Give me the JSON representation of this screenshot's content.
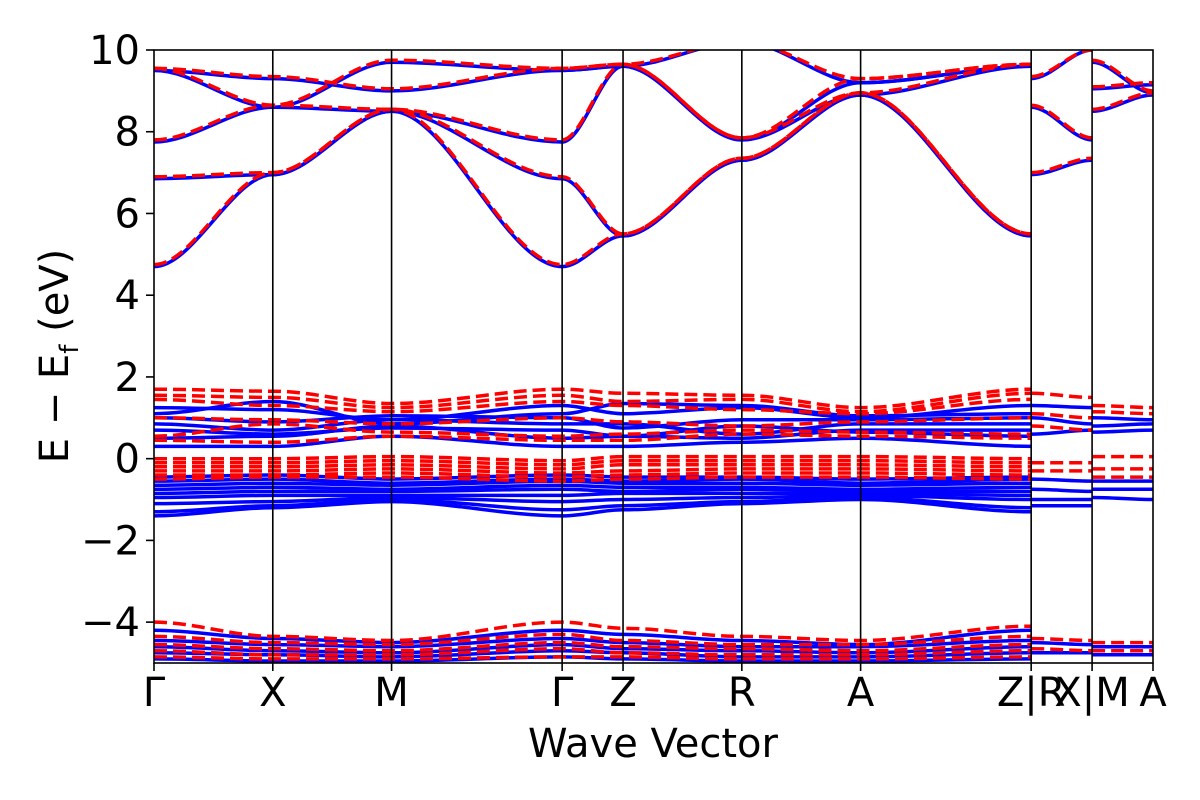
{
  "chart_data": {
    "type": "line",
    "xlabel": "Wave Vector",
    "ylabel_main": "E − E",
    "ylabel_sub": "f",
    "ylabel_unit": " (eV)",
    "ylim": [
      -5,
      10
    ],
    "yticks": [
      -4,
      -2,
      0,
      2,
      4,
      6,
      8,
      10
    ],
    "ytick_labels": [
      "−4",
      "−2",
      "0",
      "2",
      "4",
      "6",
      "8",
      "10"
    ],
    "xlim": [
      0,
      16.4
    ],
    "high_symmetry_points": [
      {
        "label": "Γ",
        "x": 0
      },
      {
        "label": "X",
        "x": 1.95
      },
      {
        "label": "M",
        "x": 3.9
      },
      {
        "label": "Γ",
        "x": 6.7
      },
      {
        "label": "Z",
        "x": 7.7
      },
      {
        "label": "R",
        "x": 9.65
      },
      {
        "label": "A",
        "x": 11.6
      },
      {
        "label": "Z|R",
        "x": 14.4
      },
      {
        "label": "X|M",
        "x": 15.4
      },
      {
        "label": "A",
        "x": 16.4
      }
    ],
    "colors": {
      "series_a": "#0000ff",
      "series_b": "#ff0000",
      "frame": "#000000"
    },
    "segments": [
      {
        "x0": 0,
        "x1": 14.4
      },
      {
        "x0": 14.4,
        "x1": 15.4
      },
      {
        "x0": 15.4,
        "x1": 16.4
      }
    ],
    "series": [
      {
        "style": "solid",
        "color": "#0000ff",
        "bands": [
          {
            "seg": 0,
            "y": [
              4.7,
              6.95,
              8.5,
              4.7,
              5.45,
              7.3,
              8.9,
              5.45
            ]
          },
          {
            "seg": 0,
            "y": [
              6.85,
              6.95,
              8.5,
              6.85,
              5.45,
              7.3,
              8.9,
              5.45
            ]
          },
          {
            "seg": 0,
            "y": [
              7.75,
              8.6,
              8.5,
              7.75,
              9.6,
              7.8,
              8.9,
              9.6
            ]
          },
          {
            "seg": 0,
            "y": [
              9.5,
              9.3,
              9.0,
              9.5,
              9.6,
              7.8,
              9.2,
              9.6
            ]
          },
          {
            "seg": 0,
            "y": [
              9.5,
              8.6,
              9.7,
              9.5,
              9.6,
              10.2,
              9.2,
              9.6
            ]
          },
          {
            "seg": 1,
            "y": [
              6.95,
              7.3
            ]
          },
          {
            "seg": 1,
            "y": [
              8.6,
              7.8
            ]
          },
          {
            "seg": 1,
            "y": [
              9.3,
              10.0
            ]
          },
          {
            "seg": 2,
            "y": [
              8.5,
              8.9
            ]
          },
          {
            "seg": 2,
            "y": [
              9.05,
              9.15
            ]
          },
          {
            "seg": 2,
            "y": [
              9.7,
              8.95
            ]
          },
          {
            "seg": 0,
            "y": [
              1.25,
              1.2,
              0.95,
              1.3,
              1.1,
              1.25,
              1.0,
              1.3
            ]
          },
          {
            "seg": 0,
            "y": [
              1.1,
              1.4,
              0.85,
              1.1,
              1.35,
              1.3,
              1.05,
              1.1
            ]
          },
          {
            "seg": 0,
            "y": [
              1.0,
              0.9,
              1.05,
              1.0,
              0.75,
              0.95,
              0.95,
              1.0
            ]
          },
          {
            "seg": 0,
            "y": [
              0.85,
              0.7,
              0.95,
              0.85,
              0.85,
              0.6,
              0.85,
              0.85
            ]
          },
          {
            "seg": 0,
            "y": [
              0.7,
              0.6,
              0.75,
              0.7,
              0.55,
              0.5,
              0.7,
              0.7
            ]
          },
          {
            "seg": 0,
            "y": [
              0.5,
              0.55,
              0.8,
              0.5,
              0.55,
              0.8,
              0.65,
              0.55
            ]
          },
          {
            "seg": 0,
            "y": [
              0.3,
              0.3,
              0.55,
              0.3,
              0.3,
              0.4,
              0.5,
              0.3
            ]
          },
          {
            "seg": 1,
            "y": [
              1.3,
              1.25
            ]
          },
          {
            "seg": 1,
            "y": [
              1.0,
              0.85
            ]
          },
          {
            "seg": 1,
            "y": [
              0.6,
              0.7
            ]
          },
          {
            "seg": 2,
            "y": [
              1.0,
              0.95
            ]
          },
          {
            "seg": 2,
            "y": [
              0.8,
              0.85
            ]
          },
          {
            "seg": 2,
            "y": [
              0.65,
              0.7
            ]
          },
          {
            "seg": 0,
            "y": [
              -0.45,
              -0.4,
              -0.5,
              -0.4,
              -0.45,
              -0.45,
              -0.5,
              -0.45
            ]
          },
          {
            "seg": 0,
            "y": [
              -0.55,
              -0.5,
              -0.6,
              -0.5,
              -0.55,
              -0.5,
              -0.6,
              -0.5
            ]
          },
          {
            "seg": 0,
            "y": [
              -0.65,
              -0.6,
              -0.65,
              -0.55,
              -0.6,
              -0.6,
              -0.65,
              -0.6
            ]
          },
          {
            "seg": 0,
            "y": [
              -0.75,
              -0.7,
              -0.75,
              -0.65,
              -0.7,
              -0.7,
              -0.75,
              -0.7
            ]
          },
          {
            "seg": 0,
            "y": [
              -0.85,
              -0.8,
              -0.8,
              -0.75,
              -0.8,
              -0.75,
              -0.8,
              -0.8
            ]
          },
          {
            "seg": 0,
            "y": [
              -0.95,
              -0.9,
              -0.9,
              -0.9,
              -0.85,
              -0.85,
              -0.85,
              -0.9
            ]
          },
          {
            "seg": 0,
            "y": [
              -1.1,
              -1.05,
              -0.95,
              -1.05,
              -1.0,
              -0.95,
              -0.9,
              -1.0
            ]
          },
          {
            "seg": 0,
            "y": [
              -1.3,
              -1.15,
              -1.0,
              -1.25,
              -1.15,
              -1.05,
              -0.95,
              -1.2
            ]
          },
          {
            "seg": 0,
            "y": [
              -1.4,
              -1.2,
              -1.05,
              -1.4,
              -1.25,
              -1.1,
              -1.0,
              -1.3
            ]
          },
          {
            "seg": 1,
            "y": [
              -0.5,
              -0.55
            ]
          },
          {
            "seg": 1,
            "y": [
              -0.75,
              -0.8
            ]
          },
          {
            "seg": 1,
            "y": [
              -1.0,
              -1.0
            ]
          },
          {
            "seg": 1,
            "y": [
              -1.15,
              -1.15
            ]
          },
          {
            "seg": 2,
            "y": [
              -0.55,
              -0.55
            ]
          },
          {
            "seg": 2,
            "y": [
              -0.75,
              -0.75
            ]
          },
          {
            "seg": 2,
            "y": [
              -0.95,
              -1.0
            ]
          },
          {
            "seg": 0,
            "y": [
              -4.2,
              -4.4,
              -4.5,
              -4.2,
              -4.3,
              -4.45,
              -4.55,
              -4.2
            ]
          },
          {
            "seg": 0,
            "y": [
              -4.45,
              -4.55,
              -4.6,
              -4.4,
              -4.5,
              -4.6,
              -4.6,
              -4.45
            ]
          },
          {
            "seg": 0,
            "y": [
              -4.6,
              -4.7,
              -4.75,
              -4.55,
              -4.65,
              -4.7,
              -4.75,
              -4.6
            ]
          },
          {
            "seg": 0,
            "y": [
              -4.75,
              -4.8,
              -4.85,
              -4.7,
              -4.75,
              -4.85,
              -4.85,
              -4.75
            ]
          },
          {
            "seg": 0,
            "y": [
              -4.9,
              -4.95,
              -4.95,
              -4.85,
              -4.9,
              -4.95,
              -4.95,
              -4.9
            ]
          },
          {
            "seg": 1,
            "y": [
              -4.5,
              -4.55
            ]
          },
          {
            "seg": 1,
            "y": [
              -4.75,
              -4.75
            ]
          },
          {
            "seg": 2,
            "y": [
              -4.6,
              -4.6
            ]
          },
          {
            "seg": 2,
            "y": [
              -4.8,
              -4.8
            ]
          }
        ]
      },
      {
        "style": "dashed",
        "color": "#ff0000",
        "bands": [
          {
            "seg": 0,
            "y": [
              4.75,
              7.0,
              8.55,
              4.75,
              5.5,
              7.35,
              8.95,
              5.5
            ]
          },
          {
            "seg": 0,
            "y": [
              6.9,
              7.0,
              8.55,
              6.9,
              5.5,
              7.35,
              8.95,
              5.5
            ]
          },
          {
            "seg": 0,
            "y": [
              7.8,
              8.65,
              8.55,
              7.8,
              9.65,
              7.85,
              8.95,
              9.65
            ]
          },
          {
            "seg": 0,
            "y": [
              9.55,
              9.35,
              9.05,
              9.55,
              9.65,
              7.85,
              9.3,
              9.65
            ]
          },
          {
            "seg": 0,
            "y": [
              9.55,
              8.65,
              9.75,
              9.55,
              9.65,
              10.2,
              9.3,
              9.65
            ]
          },
          {
            "seg": 1,
            "y": [
              7.0,
              7.35
            ]
          },
          {
            "seg": 1,
            "y": [
              8.65,
              7.85
            ]
          },
          {
            "seg": 1,
            "y": [
              9.35,
              10.0
            ]
          },
          {
            "seg": 2,
            "y": [
              8.55,
              8.95
            ]
          },
          {
            "seg": 2,
            "y": [
              9.1,
              9.2
            ]
          },
          {
            "seg": 2,
            "y": [
              9.75,
              9.0
            ]
          },
          {
            "seg": 0,
            "y": [
              1.7,
              1.65,
              1.35,
              1.7,
              1.6,
              1.55,
              1.25,
              1.7
            ]
          },
          {
            "seg": 0,
            "y": [
              1.55,
              1.5,
              1.25,
              1.55,
              1.4,
              1.45,
              1.15,
              1.6
            ]
          },
          {
            "seg": 0,
            "y": [
              1.45,
              1.3,
              1.15,
              1.4,
              1.3,
              1.2,
              1.1,
              1.45
            ]
          },
          {
            "seg": 0,
            "y": [
              1.0,
              0.95,
              0.85,
              1.0,
              0.9,
              0.8,
              0.9,
              1.0
            ]
          },
          {
            "seg": 0,
            "y": [
              0.55,
              0.85,
              0.65,
              0.55,
              0.6,
              0.7,
              0.65,
              0.6
            ]
          },
          {
            "seg": 0,
            "y": [
              0.45,
              0.4,
              0.55,
              0.45,
              0.45,
              0.6,
              0.55,
              0.5
            ]
          },
          {
            "seg": 1,
            "y": [
              1.6,
              1.5
            ]
          },
          {
            "seg": 1,
            "y": [
              1.1,
              1.0
            ]
          },
          {
            "seg": 1,
            "y": [
              0.8,
              0.7
            ]
          },
          {
            "seg": 2,
            "y": [
              1.3,
              1.25
            ]
          },
          {
            "seg": 2,
            "y": [
              1.15,
              1.1
            ]
          },
          {
            "seg": 0,
            "y": [
              0.0,
              0.0,
              0.05,
              -0.05,
              0.05,
              0.05,
              0.05,
              0.0
            ]
          },
          {
            "seg": 0,
            "y": [
              -0.1,
              -0.1,
              -0.05,
              -0.15,
              -0.05,
              -0.05,
              -0.05,
              -0.1
            ]
          },
          {
            "seg": 0,
            "y": [
              -0.2,
              -0.2,
              -0.15,
              -0.25,
              -0.15,
              -0.15,
              -0.15,
              -0.2
            ]
          },
          {
            "seg": 0,
            "y": [
              -0.3,
              -0.3,
              -0.25,
              -0.35,
              -0.3,
              -0.25,
              -0.25,
              -0.3
            ]
          },
          {
            "seg": 0,
            "y": [
              -0.4,
              -0.4,
              -0.35,
              -0.45,
              -0.4,
              -0.35,
              -0.35,
              -0.4
            ]
          },
          {
            "seg": 0,
            "y": [
              -0.5,
              -0.45,
              -0.45,
              -0.55,
              -0.5,
              -0.45,
              -0.45,
              -0.5
            ]
          },
          {
            "seg": 1,
            "y": [
              -0.1,
              -0.1
            ]
          },
          {
            "seg": 1,
            "y": [
              -0.3,
              -0.3
            ]
          },
          {
            "seg": 2,
            "y": [
              0.05,
              0.05
            ]
          },
          {
            "seg": 2,
            "y": [
              -0.25,
              -0.25
            ]
          },
          {
            "seg": 2,
            "y": [
              -0.45,
              -0.45
            ]
          },
          {
            "seg": 0,
            "y": [
              -4.0,
              -4.35,
              -4.45,
              -4.0,
              -4.15,
              -4.35,
              -4.45,
              -4.1
            ]
          },
          {
            "seg": 0,
            "y": [
              -4.35,
              -4.5,
              -4.55,
              -4.3,
              -4.45,
              -4.55,
              -4.55,
              -4.35
            ]
          },
          {
            "seg": 0,
            "y": [
              -4.55,
              -4.65,
              -4.7,
              -4.5,
              -4.6,
              -4.65,
              -4.7,
              -4.55
            ]
          },
          {
            "seg": 0,
            "y": [
              -4.7,
              -4.8,
              -4.8,
              -4.65,
              -4.75,
              -4.8,
              -4.8,
              -4.7
            ]
          },
          {
            "seg": 0,
            "y": [
              -4.85,
              -4.9,
              -4.9,
              -4.85,
              -4.85,
              -4.9,
              -4.9,
              -4.85
            ]
          },
          {
            "seg": 1,
            "y": [
              -4.4,
              -4.45
            ]
          },
          {
            "seg": 1,
            "y": [
              -4.65,
              -4.7
            ]
          },
          {
            "seg": 2,
            "y": [
              -4.5,
              -4.5
            ]
          },
          {
            "seg": 2,
            "y": [
              -4.7,
              -4.7
            ]
          }
        ]
      }
    ]
  }
}
